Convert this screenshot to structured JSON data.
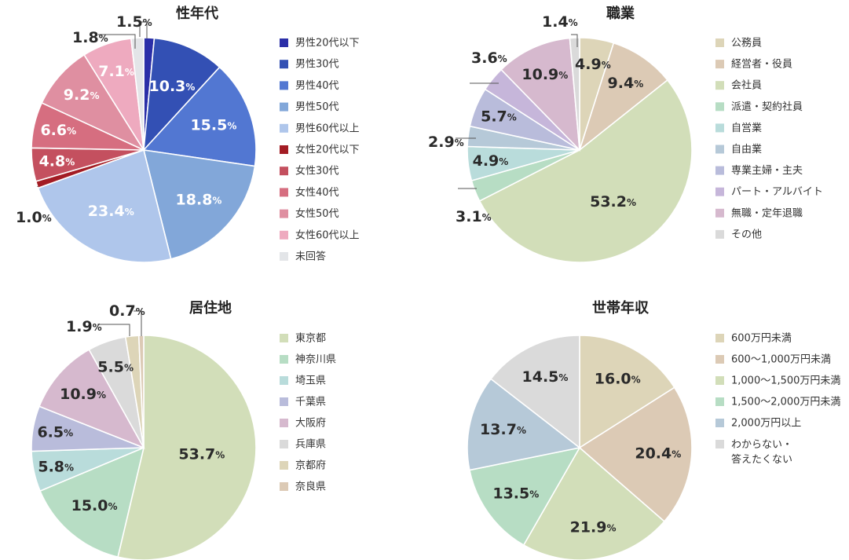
{
  "chart_data": [
    {
      "type": "pie",
      "title": "性年代",
      "unit": "%",
      "categories": [
        "男性20代以下",
        "男性30代",
        "男性40代",
        "男性50代",
        "男性60代以上",
        "女性20代以下",
        "女性30代",
        "女性40代",
        "女性50代",
        "女性60代以上",
        "未回答"
      ],
      "values": [
        1.5,
        10.3,
        15.5,
        18.8,
        23.4,
        1.0,
        4.8,
        6.6,
        9.2,
        7.1,
        1.8
      ],
      "colors": [
        "#2b2fa8",
        "#3350b4",
        "#5277d2",
        "#82a7d9",
        "#afc6eb",
        "#a31c24",
        "#c4505f",
        "#d66e80",
        "#df8fa1",
        "#eeaabf",
        "#e3e5e8"
      ],
      "legend": "right"
    },
    {
      "type": "pie",
      "title": "職業",
      "unit": "%",
      "categories": [
        "公務員",
        "経営者・役員",
        "会社員",
        "派遣・契約社員",
        "自営業",
        "自由業",
        "専業主婦・主夫",
        "パート・アルバイト",
        "無職・定年退職",
        "その他"
      ],
      "values": [
        4.9,
        9.4,
        53.2,
        3.1,
        4.9,
        2.9,
        5.7,
        3.6,
        10.9,
        1.4
      ],
      "colors": [
        "#ddd5b8",
        "#dccab5",
        "#d2deb9",
        "#b7ddc4",
        "#b9dcdb",
        "#b6c9d8",
        "#b9bcdb",
        "#c6b6da",
        "#d6b9ce",
        "#dadada"
      ],
      "legend": "right"
    },
    {
      "type": "pie",
      "title": "居住地",
      "unit": "%",
      "categories": [
        "東京都",
        "神奈川県",
        "埼玉県",
        "千葉県",
        "大阪府",
        "兵庫県",
        "京都府",
        "奈良県"
      ],
      "values": [
        53.7,
        15.0,
        5.8,
        6.5,
        10.9,
        5.5,
        1.9,
        0.7
      ],
      "colors": [
        "#d2deb9",
        "#b7ddc4",
        "#b9dcdb",
        "#b9bcdb",
        "#d6b9ce",
        "#dadada",
        "#ddd5b8",
        "#dccab5"
      ],
      "legend": "right"
    },
    {
      "type": "pie",
      "title": "世帯年収",
      "unit": "%",
      "categories": [
        "600万円未満",
        "600〜1,000万円未満",
        "1,000〜1,500万円未満",
        "1,500〜2,000万円未満",
        "2,000万円以上",
        "わからない・答えたくない"
      ],
      "values": [
        16.0,
        20.4,
        21.9,
        13.5,
        13.7,
        14.5
      ],
      "colors": [
        "#ddd5b8",
        "#dccab5",
        "#d2deb9",
        "#b7ddc4",
        "#b6c9d8",
        "#dadada"
      ],
      "legend": "right"
    }
  ]
}
